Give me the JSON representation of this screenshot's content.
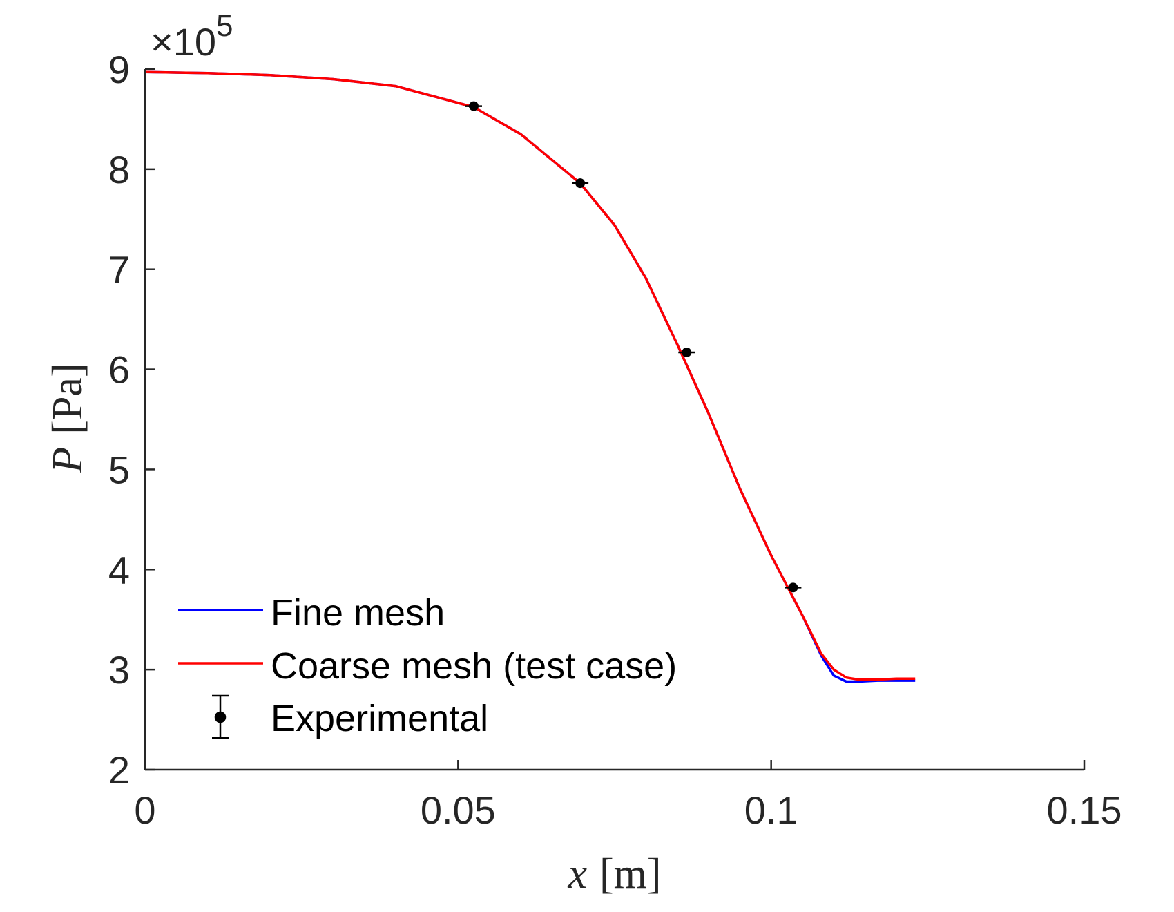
{
  "chart_data": {
    "type": "line",
    "xlabel_var": "x",
    "xlabel_unit": "[m]",
    "ylabel_var": "P",
    "ylabel_unit": "[Pa]",
    "y_exponent": "×10",
    "y_exponent_power": "5",
    "xlim": [
      0,
      0.15
    ],
    "ylim": [
      2,
      9
    ],
    "xticks": [
      "0",
      "0.05",
      "0.1",
      "0.15"
    ],
    "xtick_values": [
      0,
      0.05,
      0.1,
      0.15
    ],
    "yticks": [
      "2",
      "3",
      "4",
      "5",
      "6",
      "7",
      "8",
      "9"
    ],
    "ytick_values": [
      2,
      3,
      4,
      5,
      6,
      7,
      8,
      9
    ],
    "grid": false,
    "legend_placement": "bottom-left",
    "series": [
      {
        "name": "Fine mesh",
        "color": "#0000ff",
        "x": [
          0,
          0.01,
          0.02,
          0.03,
          0.04,
          0.0525,
          0.06,
          0.0695,
          0.075,
          0.08,
          0.085,
          0.09,
          0.095,
          0.1,
          0.105,
          0.108,
          0.11,
          0.112,
          0.114,
          0.117,
          0.12,
          0.123
        ],
        "y": [
          8.97,
          8.96,
          8.94,
          8.9,
          8.83,
          8.62,
          8.35,
          7.86,
          7.44,
          6.91,
          6.25,
          5.56,
          4.81,
          4.14,
          3.54,
          3.14,
          2.94,
          2.88,
          2.88,
          2.89,
          2.89,
          2.89
        ]
      },
      {
        "name": "Coarse mesh (test case)",
        "color": "#ff0000",
        "x": [
          0,
          0.01,
          0.02,
          0.03,
          0.04,
          0.0525,
          0.06,
          0.0695,
          0.075,
          0.08,
          0.085,
          0.09,
          0.095,
          0.1,
          0.105,
          0.108,
          0.11,
          0.112,
          0.114,
          0.117,
          0.12,
          0.123
        ],
        "y": [
          8.97,
          8.96,
          8.94,
          8.9,
          8.83,
          8.62,
          8.35,
          7.86,
          7.44,
          6.91,
          6.25,
          5.56,
          4.81,
          4.14,
          3.54,
          3.16,
          3.0,
          2.92,
          2.9,
          2.9,
          2.91,
          2.91
        ]
      }
    ],
    "experimental": {
      "name": "Experimental",
      "color": "#000000",
      "x": [
        0.0525,
        0.0695,
        0.0865,
        0.1035
      ],
      "y": [
        8.63,
        7.86,
        6.17,
        3.82
      ]
    }
  }
}
